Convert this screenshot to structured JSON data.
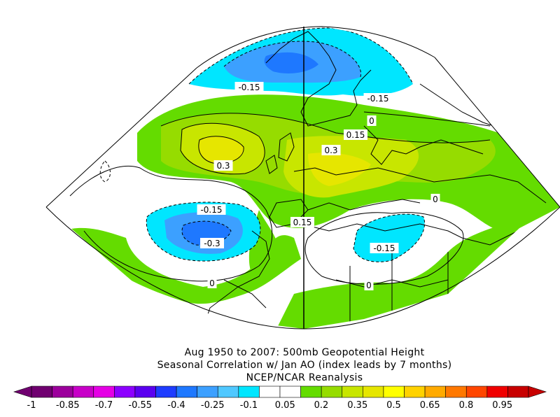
{
  "caption": {
    "line1": "Aug 1950 to 2007: 500mb Geopotential Height",
    "line2": "Seasonal Correlation w/ Jan AO (index leads by 7 months)",
    "line3": "NCEP/NCAR Reanalysis"
  },
  "contour_labels": [
    {
      "text": "-0.15"
    },
    {
      "text": "-0.15"
    },
    {
      "text": "0"
    },
    {
      "text": "0.15"
    },
    {
      "text": "0.3"
    },
    {
      "text": "0.3"
    },
    {
      "text": "-0.15"
    },
    {
      "text": "-0.3"
    },
    {
      "text": "0.15"
    },
    {
      "text": "-0.15"
    },
    {
      "text": "0"
    },
    {
      "text": "0"
    },
    {
      "text": "0"
    }
  ],
  "colorbar": {
    "tick_labels": [
      "-1",
      "-0.85",
      "-0.7",
      "-0.55",
      "-0.4",
      "-0.25",
      "-0.1",
      "0.05",
      "0.2",
      "0.35",
      "0.5",
      "0.65",
      "0.8",
      "0.95"
    ],
    "colors": [
      "#700070",
      "#9c009c",
      "#c800c8",
      "#e500e5",
      "#8c00ff",
      "#5a00f0",
      "#1e3cff",
      "#1e78ff",
      "#3ca0ff",
      "#50c8ff",
      "#00e6ff",
      "#ffffff",
      "#ffffff",
      "#64dc00",
      "#96dc00",
      "#c8e600",
      "#e6e600",
      "#ffff00",
      "#ffd200",
      "#ffaa00",
      "#ff7800",
      "#ff4600",
      "#f00000",
      "#c80000"
    ]
  },
  "colors": {
    "ocean_positive": "#64dc00",
    "positive_strong": "#96dc00",
    "positive_core": "#e6e600",
    "negative": "#00e6ff",
    "negative_core": "#3ca0ff"
  }
}
